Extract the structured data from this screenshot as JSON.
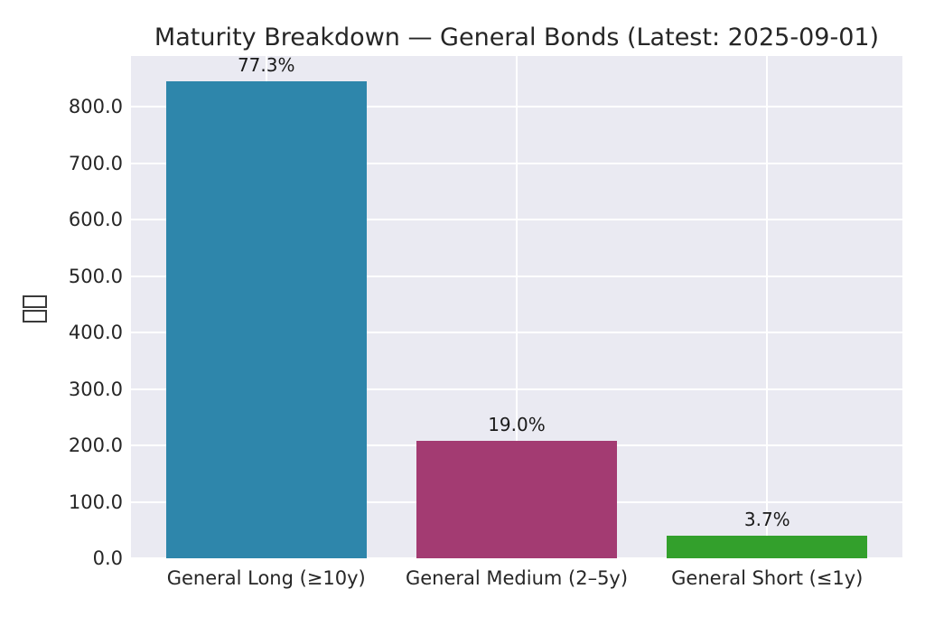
{
  "chart_data": {
    "type": "bar",
    "title": "Maturity Breakdown — General Bonds (Latest: 2025-09-01)",
    "categories": [
      "General Long (≥10y)",
      "General Medium (2–5y)",
      "General Short (≤1y)"
    ],
    "values": [
      846,
      208,
      40
    ],
    "bar_labels": [
      "77.3%",
      "19.0%",
      "3.7%"
    ],
    "bar_colors": [
      "#2E86AB",
      "#A33B72",
      "#33A02C"
    ],
    "ylabel": "□□",
    "ylabel_note": "two missing-glyph tofu boxes (unrendered CJK label), rotated vertical",
    "ylim": [
      0,
      890
    ],
    "xlim": [
      -0.54,
      2.54
    ],
    "bar_width": 0.8,
    "ytick_values": [
      0,
      100,
      200,
      300,
      400,
      500,
      600,
      700,
      800
    ],
    "ytick_labels": [
      "0.0",
      "100.0",
      "200.0",
      "300.0",
      "400.0",
      "500.0",
      "600.0",
      "700.0",
      "800.0"
    ],
    "grid": "horizontal and vertical white gridlines",
    "gridline_color": "#FFFFFF",
    "plot_bg": "#EAEAF2",
    "figure_bg": "#FFFFFF",
    "text_color": "#262626",
    "legend": "none"
  }
}
